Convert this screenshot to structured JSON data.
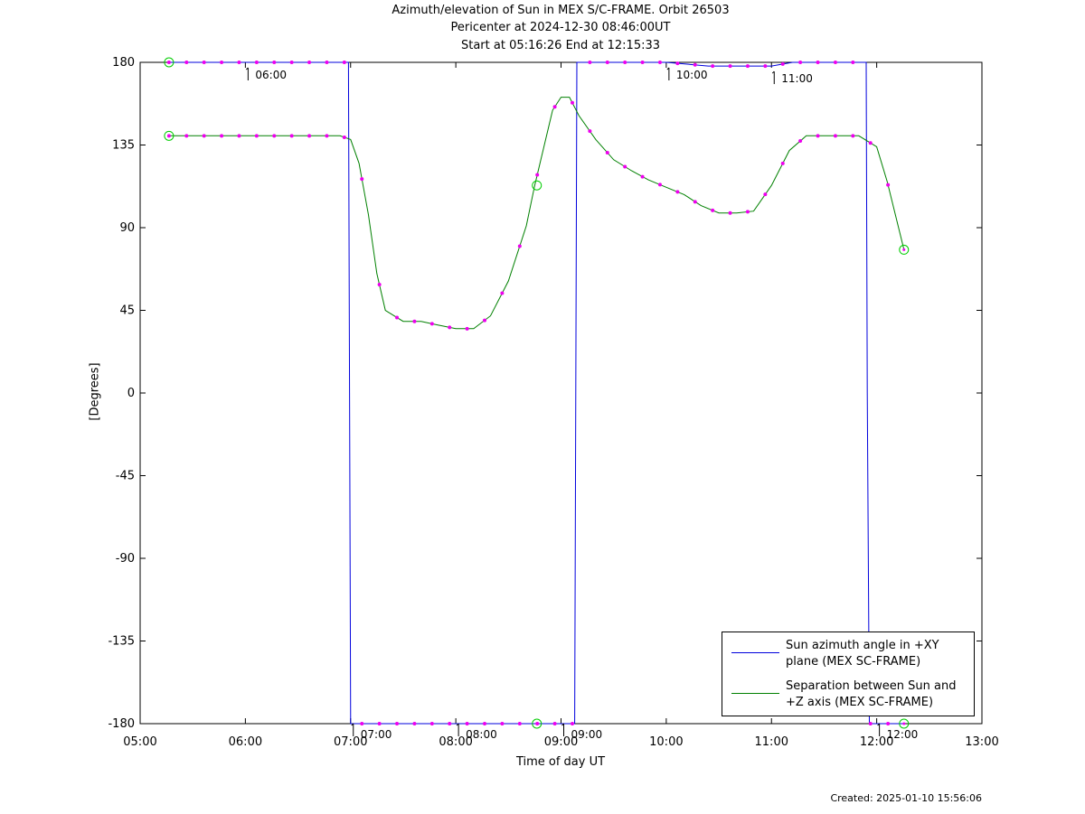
{
  "chart_data": {
    "type": "line",
    "title_lines": [
      "Azimuth/elevation of Sun in MEX S/C-FRAME.  Orbit 26503",
      "Pericenter at 2024-12-30 08:46:00UT",
      "Start at 05:16:26 End at 12:15:33"
    ],
    "xlabel": "Time of day UT",
    "ylabel": "[Degrees]",
    "created": "Created: 2025-01-10 15:56:06",
    "xlim": [
      5.0,
      13.0
    ],
    "ylim": [
      -180,
      180
    ],
    "x_ticks": [
      5,
      6,
      7,
      8,
      9,
      10,
      11,
      12,
      13
    ],
    "x_tick_labels": [
      "05:00",
      "06:00",
      "07:00",
      "08:00",
      "09:00",
      "10:00",
      "11:00",
      "12:00",
      "13:00"
    ],
    "y_ticks": [
      180,
      135,
      90,
      45,
      0,
      -45,
      -90,
      -135,
      -180
    ],
    "y_tick_labels": [
      "180",
      "135",
      "90",
      "45",
      "0",
      "-45",
      "-90",
      "-135",
      "-180"
    ],
    "grid": false,
    "legend_position": "bottom-right",
    "colors": {
      "azimuth": "#0000dd",
      "separation": "#008000",
      "marker": "#ee00ee",
      "endpoint": "#00cc00"
    },
    "series": [
      {
        "name": "Sun azimuth angle in +XY plane (MEX SC-FRAME)",
        "legend_lines": [
          "Sun azimuth angle in +XY",
          "plane (MEX SC-FRAME)"
        ],
        "color": "#0000dd",
        "x": [
          5.274,
          6.0,
          6.98,
          6.99,
          7.0,
          8.0,
          8.75,
          9.13,
          9.14,
          9.15,
          10.0,
          10.4,
          10.8,
          11.0,
          11.2,
          11.6,
          11.9,
          11.91,
          11.93,
          12.259
        ],
        "y": [
          180,
          180,
          180,
          0,
          -180,
          -180,
          -180,
          -180,
          0,
          180,
          180,
          178,
          178,
          178,
          180,
          180,
          180,
          0,
          -180,
          -180
        ]
      },
      {
        "name": "Separation between Sun and +Z axis (MEX SC-FRAME)",
        "legend_lines": [
          "Separation between Sun and",
          "+Z axis (MEX SC-FRAME)"
        ],
        "color": "#008000",
        "x": [
          5.274,
          6.0,
          6.9,
          7.0,
          7.08,
          7.17,
          7.25,
          7.33,
          7.5,
          7.67,
          7.83,
          8.0,
          8.17,
          8.33,
          8.5,
          8.67,
          8.75,
          8.92,
          9.0,
          9.08,
          9.17,
          9.33,
          9.5,
          9.67,
          9.83,
          10.0,
          10.17,
          10.33,
          10.5,
          10.67,
          10.83,
          11.0,
          11.17,
          11.33,
          11.5,
          11.67,
          11.83,
          12.0,
          12.1,
          12.259
        ],
        "y": [
          140,
          140,
          140,
          138,
          125,
          97,
          65,
          45,
          39,
          39,
          37,
          35,
          35,
          42,
          61,
          91,
          113,
          154,
          161,
          161,
          151,
          138,
          127,
          121,
          116,
          112,
          108,
          102,
          98,
          98,
          99,
          113,
          132,
          140,
          140,
          140,
          140,
          134,
          115,
          78
        ]
      }
    ],
    "time_annotations": [
      {
        "label": "06:00",
        "x": 6.0,
        "y": 180
      },
      {
        "label": "07:00",
        "x": 7.0,
        "y": -180
      },
      {
        "label": "08:00",
        "x": 8.0,
        "y": -180
      },
      {
        "label": "09:00",
        "x": 9.0,
        "y": -180
      },
      {
        "label": "10:00",
        "x": 10.0,
        "y": 180
      },
      {
        "label": "11:00",
        "x": 11.0,
        "y": 178
      },
      {
        "label": "12:00",
        "x": 12.0,
        "y": -180
      }
    ]
  }
}
